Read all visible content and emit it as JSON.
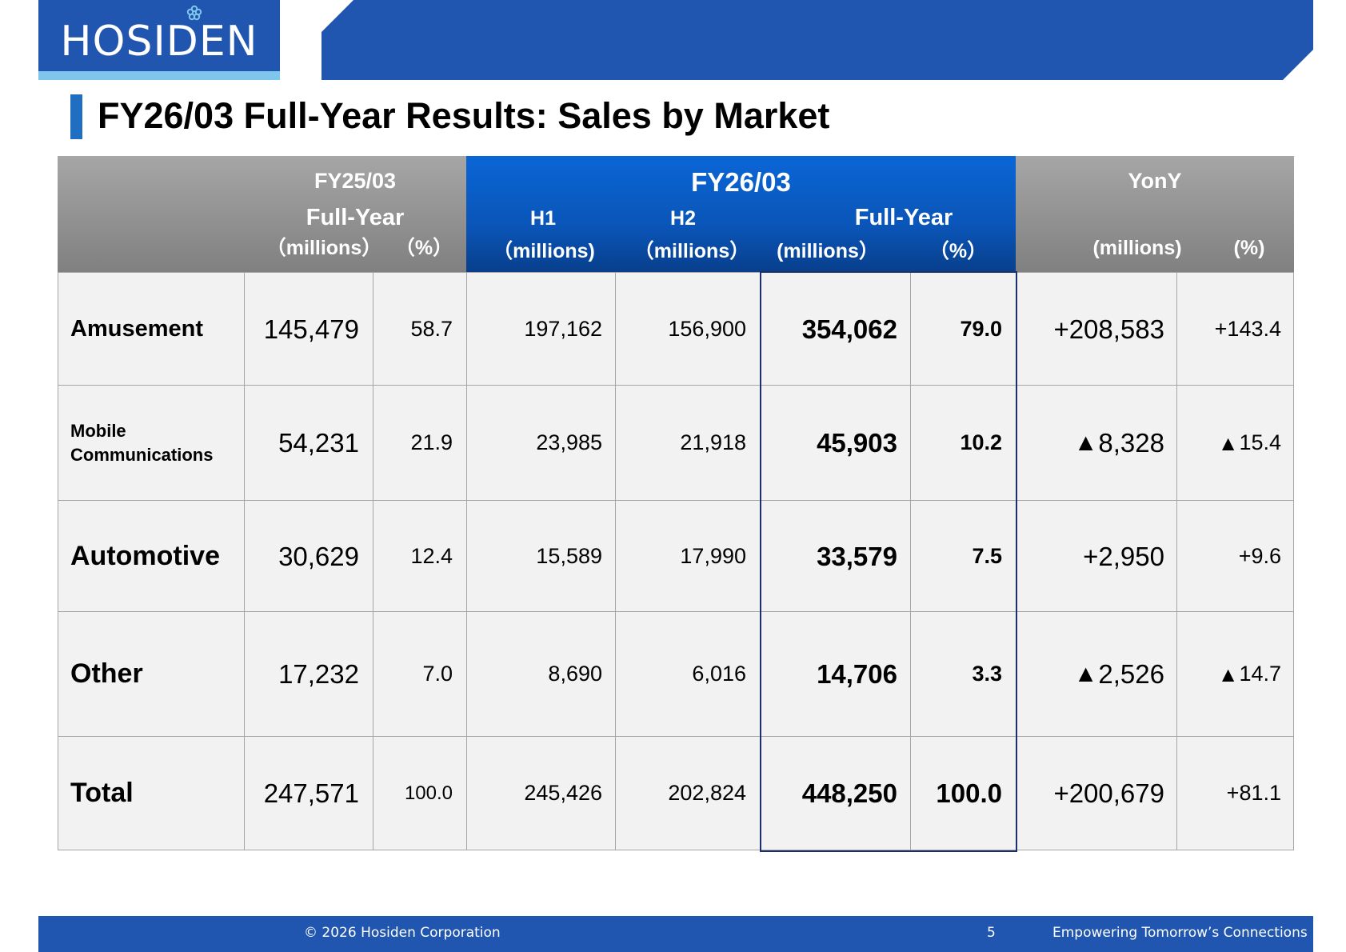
{
  "brand": {
    "logo_text": "HOSIDEN",
    "colors": {
      "primary": "#2156b0",
      "accent": "#7fc6ec",
      "title_bar": "#1f6ec2",
      "highlight_border": "#1a2f6e"
    }
  },
  "title": "FY26/03 Full-Year Results: Sales by Market",
  "table": {
    "header": {
      "fy25": {
        "period": "FY25/03",
        "label": "Full-Year",
        "unit_millions": "（millions）",
        "unit_pct": "（%）"
      },
      "fy26": {
        "period": "FY26/03",
        "h1": "H1",
        "h2": "H2",
        "full_year": "Full-Year",
        "h1_unit": "（millions)",
        "h2_unit": "（millions）",
        "fy_unit_millions": "(millions）",
        "fy_unit_pct": "（%）"
      },
      "yony": {
        "label": "YonY",
        "unit_millions": "(millions)",
        "unit_pct": "(%)"
      }
    },
    "rows": [
      {
        "market_line1": "Amusement",
        "market_line2": "",
        "fy25_full": "145,479",
        "fy25_pct": "58.7",
        "h1": "197,162",
        "h2": "156,900",
        "fy26_full": "354,062",
        "fy26_pct": "79.0",
        "yony_mark": "",
        "yony_millions": "+208,583",
        "yony_pct_mark": "",
        "yony_pct": "+143.4"
      },
      {
        "market_line1": "Mobile",
        "market_line2": "Communications",
        "fy25_full": "54,231",
        "fy25_pct": "21.9",
        "h1": "23,985",
        "h2": "21,918",
        "fy26_full": "45,903",
        "fy26_pct": "10.2",
        "yony_mark": "▲",
        "yony_millions": "8,328",
        "yony_pct_mark": "▲",
        "yony_pct": "15.4"
      },
      {
        "market_line1": "Automotive",
        "market_line2": "",
        "fy25_full": "30,629",
        "fy25_pct": "12.4",
        "h1": "15,589",
        "h2": "17,990",
        "fy26_full": "33,579",
        "fy26_pct": "7.5",
        "yony_mark": "",
        "yony_millions": "+2,950",
        "yony_pct_mark": "",
        "yony_pct": "+9.6"
      },
      {
        "market_line1": "Other",
        "market_line2": "",
        "fy25_full": "17,232",
        "fy25_pct": "7.0",
        "h1": "8,690",
        "h2": "6,016",
        "fy26_full": "14,706",
        "fy26_pct": "3.3",
        "yony_mark": "▲",
        "yony_millions": "2,526",
        "yony_pct_mark": "▲",
        "yony_pct": "14.7"
      },
      {
        "market_line1": "Total",
        "market_line2": "",
        "fy25_full": "247,571",
        "fy25_pct": "100.0",
        "h1": "245,426",
        "h2": "202,824",
        "fy26_full": "448,250",
        "fy26_pct": "100.0",
        "yony_mark": "",
        "yony_millions": "+200,679",
        "yony_pct_mark": "",
        "yony_pct": "+81.1"
      }
    ]
  },
  "footer": {
    "copyright": "© 2026 Hosiden Corporation",
    "page_number": "5",
    "tagline": "Empowering Tomorrow’s Connections"
  }
}
